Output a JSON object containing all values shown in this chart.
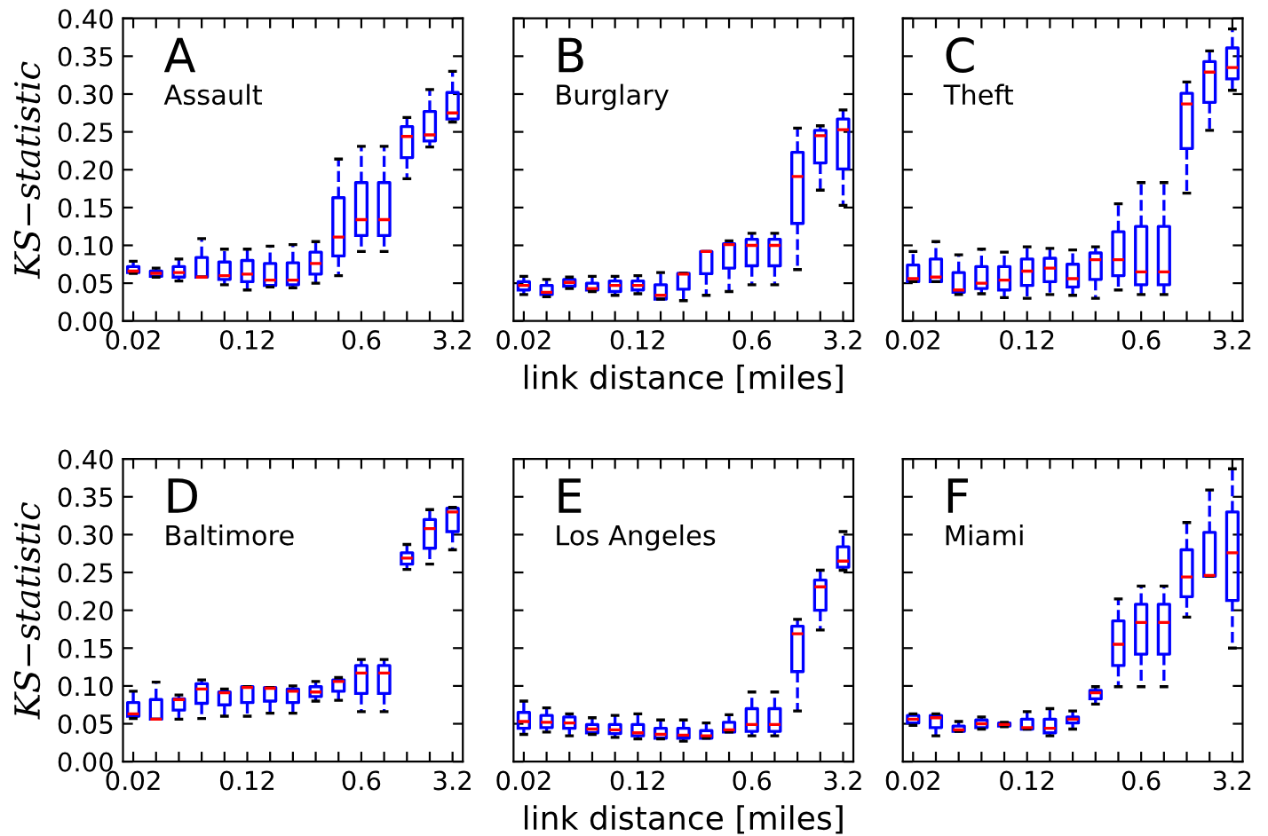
{
  "chart_data": [
    {
      "type": "box",
      "title": "A",
      "subtitle": "Assault",
      "ylabel": "KS−statistic",
      "categories": [
        "0.02",
        null,
        null,
        null,
        null,
        "0.12",
        null,
        null,
        null,
        null,
        "0.6",
        null,
        null,
        null,
        "3.2"
      ],
      "ylim": [
        0,
        0.4
      ],
      "yticks": [
        {
          "value": 0,
          "label": "0.00"
        },
        0.05,
        {
          "value": 0.1,
          "label": "0.10"
        },
        0.15,
        {
          "value": 0.2,
          "label": "0.20"
        },
        0.25,
        {
          "value": 0.3,
          "label": "0.30"
        },
        0.35,
        {
          "value": 0.4,
          "label": "0.40"
        }
      ],
      "grid": false,
      "series": [
        {
          "color": "#0000ff",
          "boxes": [
            {
              "low": 0.063,
              "q1": 0.064,
              "median": 0.066,
              "q3": 0.072,
              "high": 0.079
            },
            {
              "low": 0.058,
              "q1": 0.059,
              "median": 0.063,
              "q3": 0.066,
              "high": 0.07
            },
            {
              "low": 0.053,
              "q1": 0.058,
              "median": 0.064,
              "q3": 0.072,
              "high": 0.082
            },
            {
              "low": 0.058,
              "q1": 0.058,
              "median": 0.058,
              "q3": 0.084,
              "high": 0.109
            },
            {
              "low": 0.048,
              "q1": 0.055,
              "median": 0.06,
              "q3": 0.078,
              "high": 0.095
            },
            {
              "low": 0.041,
              "q1": 0.052,
              "median": 0.062,
              "q3": 0.08,
              "high": 0.095
            },
            {
              "low": 0.045,
              "q1": 0.047,
              "median": 0.054,
              "q3": 0.076,
              "high": 0.099
            },
            {
              "low": 0.044,
              "q1": 0.048,
              "median": 0.054,
              "q3": 0.077,
              "high": 0.101
            },
            {
              "low": 0.05,
              "q1": 0.062,
              "median": 0.076,
              "q3": 0.091,
              "high": 0.105
            },
            {
              "low": 0.06,
              "q1": 0.086,
              "median": 0.111,
              "q3": 0.163,
              "high": 0.214
            },
            {
              "low": 0.092,
              "q1": 0.113,
              "median": 0.134,
              "q3": 0.183,
              "high": 0.231
            },
            {
              "low": 0.092,
              "q1": 0.113,
              "median": 0.134,
              "q3": 0.183,
              "high": 0.231
            },
            {
              "low": 0.188,
              "q1": 0.216,
              "median": 0.244,
              "q3": 0.257,
              "high": 0.269
            },
            {
              "low": 0.23,
              "q1": 0.238,
              "median": 0.246,
              "q3": 0.277,
              "high": 0.306
            },
            {
              "low": 0.263,
              "q1": 0.267,
              "median": 0.275,
              "q3": 0.302,
              "high": 0.33
            }
          ]
        }
      ]
    },
    {
      "type": "box",
      "title": "B",
      "subtitle": "Burglary",
      "xlabel": "link distance [miles]",
      "tick_labels": "x",
      "categories": [
        "0.02",
        null,
        null,
        null,
        null,
        "0.12",
        null,
        null,
        null,
        null,
        "0.6",
        null,
        null,
        null,
        "3.2"
      ],
      "ylim": [
        0,
        0.4
      ],
      "yticks": [
        {
          "value": 0,
          "label": null
        },
        {
          "value": 0.05,
          "label": null
        },
        {
          "value": 0.1,
          "label": null
        },
        {
          "value": 0.15,
          "label": null
        },
        {
          "value": 0.2,
          "label": null
        },
        {
          "value": 0.25,
          "label": null
        },
        {
          "value": 0.3,
          "label": null
        },
        {
          "value": 0.35,
          "label": null
        },
        {
          "value": 0.4,
          "label": null
        }
      ],
      "grid": false,
      "series": [
        {
          "color": "#0000ff",
          "boxes": [
            {
              "low": 0.035,
              "q1": 0.041,
              "median": 0.047,
              "q3": 0.052,
              "high": 0.059
            },
            {
              "low": 0.032,
              "q1": 0.035,
              "median": 0.038,
              "q3": 0.047,
              "high": 0.055
            },
            {
              "low": 0.043,
              "q1": 0.046,
              "median": 0.051,
              "q3": 0.055,
              "high": 0.058
            },
            {
              "low": 0.039,
              "q1": 0.041,
              "median": 0.043,
              "q3": 0.05,
              "high": 0.059
            },
            {
              "low": 0.034,
              "q1": 0.039,
              "median": 0.047,
              "q3": 0.053,
              "high": 0.059
            },
            {
              "low": 0.036,
              "q1": 0.041,
              "median": 0.047,
              "q3": 0.053,
              "high": 0.06
            },
            {
              "low": 0.029,
              "q1": 0.029,
              "median": 0.034,
              "q3": 0.048,
              "high": 0.064
            },
            {
              "low": 0.027,
              "q1": 0.042,
              "median": 0.062,
              "q3": 0.063,
              "high": 0.063
            },
            {
              "low": 0.034,
              "q1": 0.0625,
              "median": 0.092,
              "q3": 0.092,
              "high": 0.092
            },
            {
              "low": 0.039,
              "q1": 0.07,
              "median": 0.101,
              "q3": 0.102,
              "high": 0.106
            },
            {
              "low": 0.048,
              "q1": 0.073,
              "median": 0.1,
              "q3": 0.108,
              "high": 0.116
            },
            {
              "low": 0.048,
              "q1": 0.073,
              "median": 0.1,
              "q3": 0.108,
              "high": 0.116
            },
            {
              "low": 0.068,
              "q1": 0.129,
              "median": 0.191,
              "q3": 0.223,
              "high": 0.255
            },
            {
              "low": 0.173,
              "q1": 0.209,
              "median": 0.245,
              "q3": 0.252,
              "high": 0.258
            },
            {
              "low": 0.153,
              "q1": 0.201,
              "median": 0.253,
              "q3": 0.267,
              "high": 0.279
            }
          ]
        }
      ]
    },
    {
      "type": "box",
      "title": "C",
      "subtitle": "Theft",
      "tick_labels": "x",
      "categories": [
        "0.02",
        null,
        null,
        null,
        null,
        "0.12",
        null,
        null,
        null,
        null,
        "0.6",
        null,
        null,
        null,
        "3.2"
      ],
      "ylim": [
        0,
        0.4
      ],
      "yticks": [
        {
          "value": 0,
          "label": null
        },
        {
          "value": 0.05,
          "label": null
        },
        {
          "value": 0.1,
          "label": null
        },
        {
          "value": 0.15,
          "label": null
        },
        {
          "value": 0.2,
          "label": null
        },
        {
          "value": 0.25,
          "label": null
        },
        {
          "value": 0.3,
          "label": null
        },
        {
          "value": 0.35,
          "label": null
        },
        {
          "value": 0.4,
          "label": null
        }
      ],
      "grid": false,
      "series": [
        {
          "color": "#0000ff",
          "boxes": [
            {
              "low": 0.052,
              "q1": 0.052,
              "median": 0.056,
              "q3": 0.074,
              "high": 0.092
            },
            {
              "low": 0.052,
              "q1": 0.052,
              "median": 0.058,
              "q3": 0.082,
              "high": 0.105
            },
            {
              "low": 0.035,
              "q1": 0.038,
              "median": 0.041,
              "q3": 0.064,
              "high": 0.0875
            },
            {
              "low": 0.036,
              "q1": 0.043,
              "median": 0.05,
              "q3": 0.072,
              "high": 0.095
            },
            {
              "low": 0.031,
              "q1": 0.041,
              "median": 0.054,
              "q3": 0.072,
              "high": 0.091
            },
            {
              "low": 0.03,
              "q1": 0.047,
              "median": 0.066,
              "q3": 0.082,
              "high": 0.098
            },
            {
              "low": 0.035,
              "q1": 0.052,
              "median": 0.07,
              "q3": 0.083,
              "high": 0.096
            },
            {
              "low": 0.034,
              "q1": 0.045,
              "median": 0.056,
              "q3": 0.075,
              "high": 0.094
            },
            {
              "low": 0.03,
              "q1": 0.055,
              "median": 0.081,
              "q3": 0.09,
              "high": 0.098
            },
            {
              "low": 0.041,
              "q1": 0.06,
              "median": 0.081,
              "q3": 0.118,
              "high": 0.155
            },
            {
              "low": 0.035,
              "q1": 0.048,
              "median": 0.065,
              "q3": 0.125,
              "high": 0.183
            },
            {
              "low": 0.035,
              "q1": 0.048,
              "median": 0.065,
              "q3": 0.125,
              "high": 0.183
            },
            {
              "low": 0.169,
              "q1": 0.228,
              "median": 0.287,
              "q3": 0.301,
              "high": 0.316
            },
            {
              "low": 0.252,
              "q1": 0.289,
              "median": 0.329,
              "q3": 0.343,
              "high": 0.357
            },
            {
              "low": 0.305,
              "q1": 0.32,
              "median": 0.335,
              "q3": 0.361,
              "high": 0.386
            }
          ]
        }
      ]
    },
    {
      "type": "box",
      "title": "D",
      "subtitle": "Baltimore",
      "ylabel": "KS−statistic",
      "categories": [
        "0.02",
        null,
        null,
        null,
        null,
        "0.12",
        null,
        null,
        null,
        null,
        "0.6",
        null,
        null,
        null,
        "3.2"
      ],
      "ylim": [
        0,
        0.4
      ],
      "yticks": [
        {
          "value": 0,
          "label": "0.00"
        },
        0.05,
        {
          "value": 0.1,
          "label": "0.10"
        },
        0.15,
        {
          "value": 0.2,
          "label": "0.20"
        },
        0.25,
        {
          "value": 0.3,
          "label": "0.30"
        },
        0.35,
        {
          "value": 0.4,
          "label": "0.40"
        }
      ],
      "grid": false,
      "series": [
        {
          "color": "#0000ff",
          "boxes": [
            {
              "low": 0.057,
              "q1": 0.06,
              "median": 0.063,
              "q3": 0.078,
              "high": 0.093
            },
            {
              "low": 0.056,
              "q1": 0.056,
              "median": 0.056,
              "q3": 0.082,
              "high": 0.105
            },
            {
              "low": 0.056,
              "q1": 0.068,
              "median": 0.082,
              "q3": 0.083,
              "high": 0.088
            },
            {
              "low": 0.057,
              "q1": 0.077,
              "median": 0.096,
              "q3": 0.103,
              "high": 0.108
            },
            {
              "low": 0.06,
              "q1": 0.075,
              "median": 0.091,
              "q3": 0.092,
              "high": 0.096
            },
            {
              "low": 0.06,
              "q1": 0.078,
              "median": 0.098,
              "q3": 0.099,
              "high": 0.099
            },
            {
              "low": 0.064,
              "q1": 0.08,
              "median": 0.097,
              "q3": 0.098,
              "high": 0.098
            },
            {
              "low": 0.064,
              "q1": 0.078,
              "median": 0.093,
              "q3": 0.096,
              "high": 0.1
            },
            {
              "low": 0.08,
              "q1": 0.086,
              "median": 0.092,
              "q3": 0.099,
              "high": 0.106
            },
            {
              "low": 0.081,
              "q1": 0.093,
              "median": 0.106,
              "q3": 0.108,
              "high": 0.111
            },
            {
              "low": 0.066,
              "q1": 0.09,
              "median": 0.117,
              "q3": 0.127,
              "high": 0.135
            },
            {
              "low": 0.066,
              "q1": 0.09,
              "median": 0.117,
              "q3": 0.127,
              "high": 0.135
            },
            {
              "low": 0.254,
              "q1": 0.261,
              "median": 0.269,
              "q3": 0.276,
              "high": 0.287
            },
            {
              "low": 0.261,
              "q1": 0.282,
              "median": 0.308,
              "q3": 0.32,
              "high": 0.333
            },
            {
              "low": 0.28,
              "q1": 0.304,
              "median": 0.33,
              "q3": 0.335,
              "high": 0.336
            }
          ]
        }
      ]
    },
    {
      "type": "box",
      "title": "E",
      "subtitle": "Los Angeles",
      "xlabel": "link distance [miles]",
      "tick_labels": "x",
      "categories": [
        "0.02",
        null,
        null,
        null,
        null,
        "0.12",
        null,
        null,
        null,
        null,
        "0.6",
        null,
        null,
        null,
        "3.2"
      ],
      "ylim": [
        0,
        0.4
      ],
      "yticks": [
        {
          "value": 0,
          "label": null
        },
        {
          "value": 0.05,
          "label": null
        },
        {
          "value": 0.1,
          "label": null
        },
        {
          "value": 0.15,
          "label": null
        },
        {
          "value": 0.2,
          "label": null
        },
        {
          "value": 0.25,
          "label": null
        },
        {
          "value": 0.3,
          "label": null
        },
        {
          "value": 0.35,
          "label": null
        },
        {
          "value": 0.4,
          "label": null
        }
      ],
      "grid": false,
      "series": [
        {
          "color": "#0000ff",
          "boxes": [
            {
              "low": 0.036,
              "q1": 0.044,
              "median": 0.053,
              "q3": 0.065,
              "high": 0.08
            },
            {
              "low": 0.039,
              "q1": 0.045,
              "median": 0.052,
              "q3": 0.061,
              "high": 0.071
            },
            {
              "low": 0.034,
              "q1": 0.044,
              "median": 0.051,
              "q3": 0.059,
              "high": 0.063
            },
            {
              "low": 0.036,
              "q1": 0.038,
              "median": 0.043,
              "q3": 0.049,
              "high": 0.058
            },
            {
              "low": 0.032,
              "q1": 0.037,
              "median": 0.042,
              "q3": 0.049,
              "high": 0.061
            },
            {
              "low": 0.03,
              "q1": 0.034,
              "median": 0.038,
              "q3": 0.049,
              "high": 0.063
            },
            {
              "low": 0.03,
              "q1": 0.031,
              "median": 0.036,
              "q3": 0.044,
              "high": 0.055
            },
            {
              "low": 0.027,
              "q1": 0.031,
              "median": 0.035,
              "q3": 0.044,
              "high": 0.055
            },
            {
              "low": 0.031,
              "q1": 0.031,
              "median": 0.034,
              "q3": 0.041,
              "high": 0.051
            },
            {
              "low": 0.039,
              "q1": 0.039,
              "median": 0.042,
              "q3": 0.052,
              "high": 0.062
            },
            {
              "low": 0.034,
              "q1": 0.04,
              "median": 0.049,
              "q3": 0.07,
              "high": 0.092
            },
            {
              "low": 0.034,
              "q1": 0.04,
              "median": 0.049,
              "q3": 0.07,
              "high": 0.092
            },
            {
              "low": 0.067,
              "q1": 0.119,
              "median": 0.169,
              "q3": 0.179,
              "high": 0.188
            },
            {
              "low": 0.174,
              "q1": 0.2,
              "median": 0.231,
              "q3": 0.24,
              "high": 0.253
            },
            {
              "low": 0.253,
              "q1": 0.257,
              "median": 0.265,
              "q3": 0.284,
              "high": 0.304
            }
          ]
        }
      ]
    },
    {
      "type": "box",
      "title": "F",
      "subtitle": "Miami",
      "tick_labels": "x",
      "categories": [
        "0.02",
        null,
        null,
        null,
        null,
        "0.12",
        null,
        null,
        null,
        null,
        "0.6",
        null,
        null,
        null,
        "3.2"
      ],
      "ylim": [
        0,
        0.4
      ],
      "yticks": [
        {
          "value": 0,
          "label": null
        },
        {
          "value": 0.05,
          "label": null
        },
        {
          "value": 0.1,
          "label": null
        },
        {
          "value": 0.15,
          "label": null
        },
        {
          "value": 0.2,
          "label": null
        },
        {
          "value": 0.25,
          "label": null
        },
        {
          "value": 0.3,
          "label": null
        },
        {
          "value": 0.35,
          "label": null
        },
        {
          "value": 0.4,
          "label": null
        }
      ],
      "grid": false,
      "series": [
        {
          "color": "#0000ff",
          "boxes": [
            {
              "low": 0.048,
              "q1": 0.051,
              "median": 0.056,
              "q3": 0.061,
              "high": 0.063
            },
            {
              "low": 0.034,
              "q1": 0.045,
              "median": 0.058,
              "q3": 0.061,
              "high": 0.063
            },
            {
              "low": 0.04,
              "q1": 0.04,
              "median": 0.042,
              "q3": 0.047,
              "high": 0.053
            },
            {
              "low": 0.043,
              "q1": 0.045,
              "median": 0.05,
              "q3": 0.055,
              "high": 0.059
            },
            {
              "low": 0.046,
              "q1": 0.047,
              "median": 0.049,
              "q3": 0.051,
              "high": 0.052
            },
            {
              "low": 0.043,
              "q1": 0.043,
              "median": 0.045,
              "q3": 0.056,
              "high": 0.066
            },
            {
              "low": 0.034,
              "q1": 0.038,
              "median": 0.044,
              "q3": 0.056,
              "high": 0.07
            },
            {
              "low": 0.043,
              "q1": 0.051,
              "median": 0.056,
              "q3": 0.059,
              "high": 0.067
            },
            {
              "low": 0.076,
              "q1": 0.083,
              "median": 0.091,
              "q3": 0.094,
              "high": 0.099
            },
            {
              "low": 0.099,
              "q1": 0.127,
              "median": 0.155,
              "q3": 0.186,
              "high": 0.215
            },
            {
              "low": 0.099,
              "q1": 0.142,
              "median": 0.184,
              "q3": 0.208,
              "high": 0.232
            },
            {
              "low": 0.099,
              "q1": 0.142,
              "median": 0.184,
              "q3": 0.208,
              "high": 0.232
            },
            {
              "low": 0.191,
              "q1": 0.218,
              "median": 0.244,
              "q3": 0.28,
              "high": 0.316
            },
            {
              "low": 0.245,
              "q1": 0.245,
              "median": 0.246,
              "q3": 0.303,
              "high": 0.359
            },
            {
              "low": 0.15,
              "q1": 0.213,
              "median": 0.276,
              "q3": 0.33,
              "high": 0.387
            }
          ]
        }
      ]
    }
  ]
}
